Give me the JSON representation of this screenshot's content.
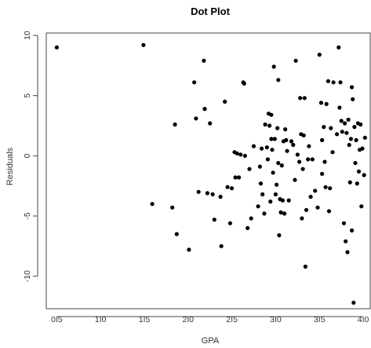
{
  "chart_data": {
    "type": "scatter",
    "title": "Dot Plot",
    "xlabel": "GPA",
    "ylabel": "Residuals",
    "xlim": [
      0.38,
      4.08
    ],
    "ylim": [
      -12.7,
      10.2
    ],
    "x_ticks": [
      0.5,
      1.0,
      1.5,
      2.0,
      2.5,
      3.0,
      3.5,
      4.0
    ],
    "x_tick_labels": [
      "0.5",
      "1.0",
      "1.5",
      "2.0",
      "2.5",
      "3.0",
      "3.5",
      "4.0"
    ],
    "y_ticks": [
      -10,
      -5,
      0,
      5,
      10
    ],
    "y_tick_labels": [
      "-10",
      "-5",
      "0",
      "5",
      "10"
    ],
    "grid": false,
    "points": [
      [
        0.5,
        9.0
      ],
      [
        1.49,
        9.2
      ],
      [
        1.59,
        -4.0
      ],
      [
        1.82,
        -4.3
      ],
      [
        1.85,
        2.6
      ],
      [
        1.87,
        -6.5
      ],
      [
        2.01,
        -7.8
      ],
      [
        2.07,
        6.1
      ],
      [
        2.09,
        3.1
      ],
      [
        2.12,
        -3.0
      ],
      [
        2.18,
        7.9
      ],
      [
        2.19,
        3.9
      ],
      [
        2.22,
        -3.1
      ],
      [
        2.25,
        2.7
      ],
      [
        2.28,
        -3.2
      ],
      [
        2.3,
        -5.3
      ],
      [
        2.37,
        -3.4
      ],
      [
        2.38,
        -7.5
      ],
      [
        2.42,
        4.5
      ],
      [
        2.45,
        -2.6
      ],
      [
        2.48,
        -5.6
      ],
      [
        2.5,
        -2.7
      ],
      [
        2.53,
        0.3
      ],
      [
        2.54,
        -1.8
      ],
      [
        2.56,
        0.2
      ],
      [
        2.58,
        -1.8
      ],
      [
        2.6,
        0.1
      ],
      [
        2.63,
        6.1
      ],
      [
        2.64,
        6.0
      ],
      [
        2.65,
        0.0
      ],
      [
        2.68,
        -6.0
      ],
      [
        2.7,
        -1.1
      ],
      [
        2.72,
        -5.2
      ],
      [
        2.75,
        0.8
      ],
      [
        2.8,
        -4.2
      ],
      [
        2.82,
        -0.9
      ],
      [
        2.83,
        -2.3
      ],
      [
        2.84,
        0.6
      ],
      [
        2.85,
        -3.2
      ],
      [
        2.87,
        -4.8
      ],
      [
        2.88,
        2.6
      ],
      [
        2.9,
        0.7
      ],
      [
        2.91,
        -0.3
      ],
      [
        2.92,
        3.5
      ],
      [
        2.93,
        2.5
      ],
      [
        2.94,
        -3.8
      ],
      [
        2.95,
        3.4
      ],
      [
        2.95,
        1.4
      ],
      [
        2.96,
        0.5
      ],
      [
        2.97,
        -1.4
      ],
      [
        2.98,
        7.4
      ],
      [
        2.99,
        1.4
      ],
      [
        3.0,
        -3.2
      ],
      [
        3.01,
        -2.4
      ],
      [
        3.02,
        2.3
      ],
      [
        3.03,
        6.3
      ],
      [
        3.03,
        -0.6
      ],
      [
        3.04,
        -6.6
      ],
      [
        3.05,
        -3.6
      ],
      [
        3.06,
        -4.7
      ],
      [
        3.07,
        -0.8
      ],
      [
        3.08,
        -3.7
      ],
      [
        3.09,
        1.2
      ],
      [
        3.1,
        -4.8
      ],
      [
        3.11,
        2.2
      ],
      [
        3.12,
        1.3
      ],
      [
        3.13,
        0.4
      ],
      [
        3.15,
        -3.7
      ],
      [
        3.18,
        1.2
      ],
      [
        3.2,
        0.9
      ],
      [
        3.22,
        -2.0
      ],
      [
        3.23,
        7.9
      ],
      [
        3.25,
        0.1
      ],
      [
        3.27,
        -0.5
      ],
      [
        3.28,
        4.8
      ],
      [
        3.29,
        1.8
      ],
      [
        3.3,
        -5.2
      ],
      [
        3.31,
        -1.1
      ],
      [
        3.32,
        1.7
      ],
      [
        3.33,
        4.8
      ],
      [
        3.34,
        -9.2
      ],
      [
        3.35,
        -4.5
      ],
      [
        3.37,
        -0.3
      ],
      [
        3.38,
        0.8
      ],
      [
        3.4,
        -3.4
      ],
      [
        3.42,
        -0.3
      ],
      [
        3.45,
        -2.9
      ],
      [
        3.48,
        -4.3
      ],
      [
        3.5,
        8.4
      ],
      [
        3.52,
        4.4
      ],
      [
        3.53,
        -1.5
      ],
      [
        3.53,
        1.3
      ],
      [
        3.55,
        2.4
      ],
      [
        3.56,
        -0.5
      ],
      [
        3.57,
        -2.6
      ],
      [
        3.58,
        4.3
      ],
      [
        3.6,
        6.2
      ],
      [
        3.61,
        -4.6
      ],
      [
        3.62,
        -2.7
      ],
      [
        3.63,
        2.3
      ],
      [
        3.65,
        0.3
      ],
      [
        3.66,
        6.1
      ],
      [
        3.7,
        1.8
      ],
      [
        3.72,
        9.0
      ],
      [
        3.73,
        4.0
      ],
      [
        3.74,
        6.1
      ],
      [
        3.75,
        2.9
      ],
      [
        3.76,
        2.0
      ],
      [
        3.78,
        -5.6
      ],
      [
        3.79,
        2.7
      ],
      [
        3.8,
        -7.1
      ],
      [
        3.81,
        1.9
      ],
      [
        3.82,
        -8.0
      ],
      [
        3.83,
        3.0
      ],
      [
        3.84,
        0.9
      ],
      [
        3.85,
        -2.2
      ],
      [
        3.86,
        1.4
      ],
      [
        3.87,
        5.7
      ],
      [
        3.87,
        -6.2
      ],
      [
        3.88,
        4.7
      ],
      [
        3.89,
        -12.2
      ],
      [
        3.9,
        2.4
      ],
      [
        3.91,
        -0.6
      ],
      [
        3.92,
        1.3
      ],
      [
        3.93,
        -2.3
      ],
      [
        3.94,
        2.7
      ],
      [
        3.95,
        -1.3
      ],
      [
        3.96,
        0.5
      ],
      [
        3.97,
        2.6
      ],
      [
        3.98,
        -4.2
      ],
      [
        3.99,
        0.6
      ],
      [
        4.01,
        -1.6
      ],
      [
        4.02,
        1.5
      ]
    ]
  }
}
